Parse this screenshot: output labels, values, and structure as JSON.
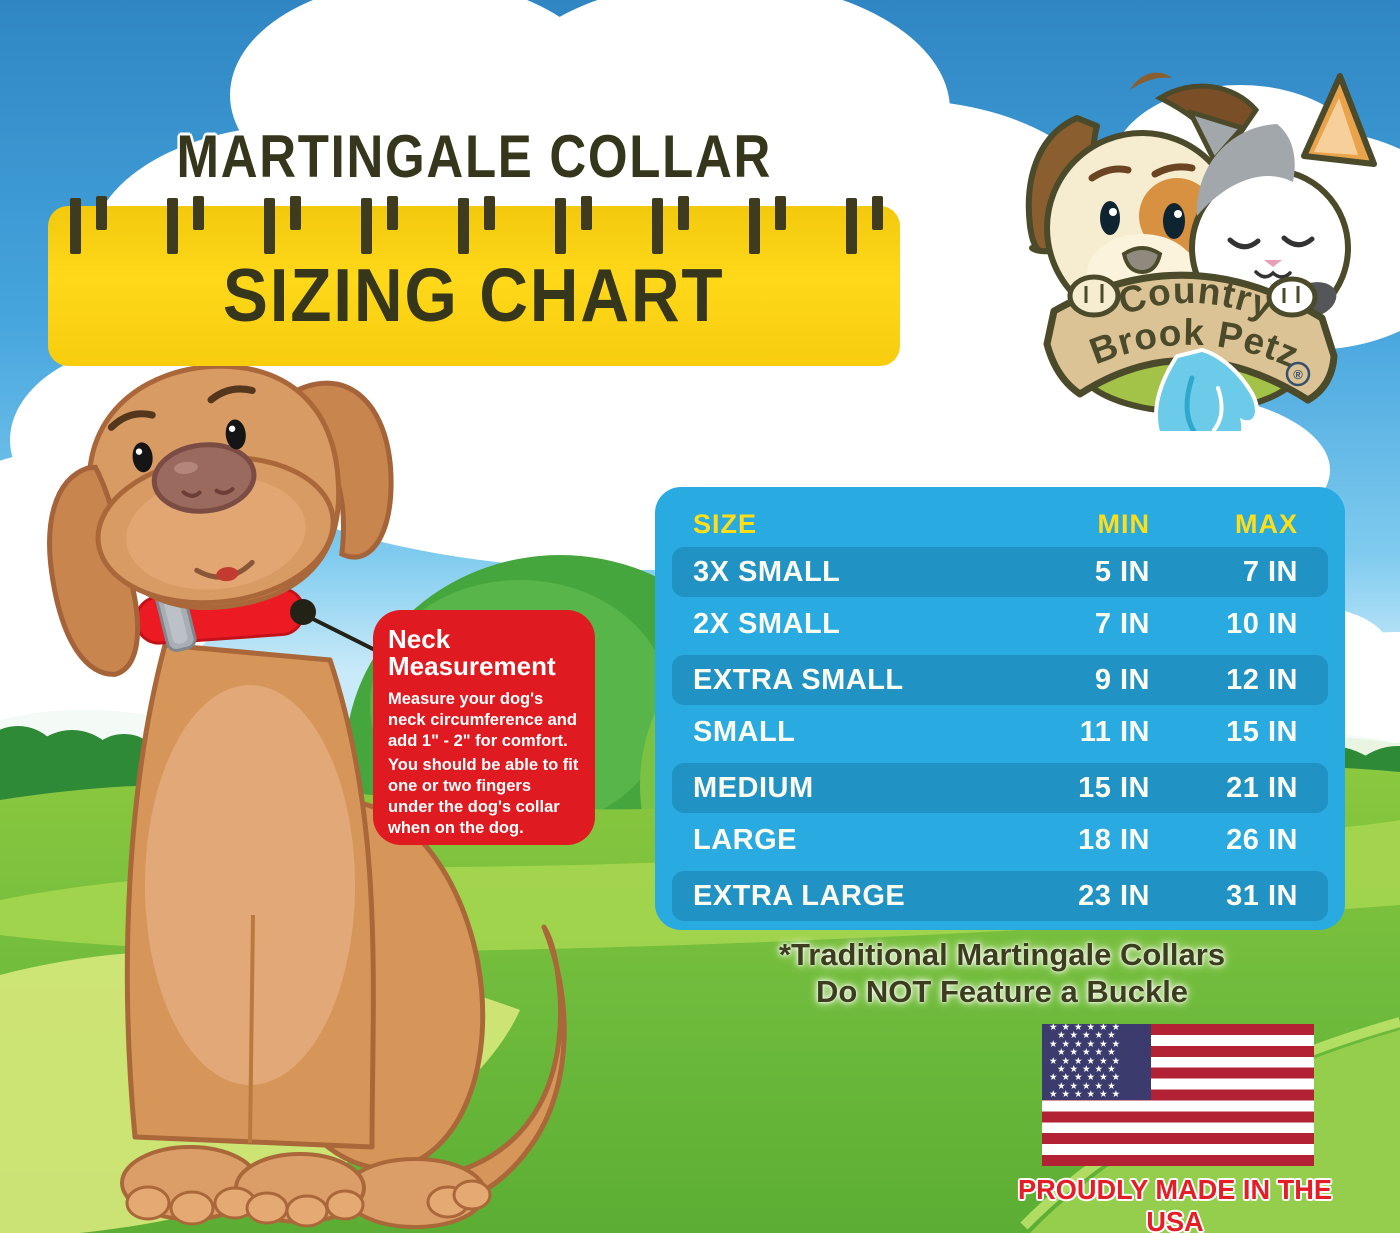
{
  "title": {
    "line1": "MARTINGALE COLLAR",
    "line2": "SIZING CHART"
  },
  "logo": {
    "brand_line1": "Country",
    "brand_line2": "Brook Petz",
    "registered_mark": "®"
  },
  "callout": {
    "heading": "Neck Measurement",
    "body1": "Measure your dog's neck circumference and add 1\" - 2\" for comfort.",
    "body2": "You should be able to fit one or two fingers under the dog's collar when on the dog."
  },
  "chart_data": {
    "type": "table",
    "title": "MARTINGALE COLLAR SIZING CHART",
    "columns": [
      "SIZE",
      "MIN",
      "MAX"
    ],
    "rows": [
      {
        "size": "3X SMALL",
        "min": "5 IN",
        "max": "7 IN"
      },
      {
        "size": "2X SMALL",
        "min": "7 IN",
        "max": "10 IN"
      },
      {
        "size": "EXTRA SMALL",
        "min": "9 IN",
        "max": "12 IN"
      },
      {
        "size": "SMALL",
        "min": "11 IN",
        "max": "15 IN"
      },
      {
        "size": "MEDIUM",
        "min": "15 IN",
        "max": "21 IN"
      },
      {
        "size": "LARGE",
        "min": "18 IN",
        "max": "26 IN"
      },
      {
        "size": "EXTRA LARGE",
        "min": "23 IN",
        "max": "31 IN"
      }
    ],
    "units": "inches"
  },
  "footnote": {
    "line1": "*Traditional Martingale Collars",
    "line2": "Do NOT Feature a Buckle"
  },
  "made_in_usa": {
    "label": "PROUDLY MADE IN THE USA"
  },
  "colors": {
    "table_bg": "#29abe2",
    "table_header_yellow": "#ffde17",
    "ruler_yellow": "#ffd81a",
    "callout_red": "#df1a20",
    "usa_red": "#e41e26",
    "sky_blue": "#46a5dd",
    "grass_green": "#7cc144"
  }
}
